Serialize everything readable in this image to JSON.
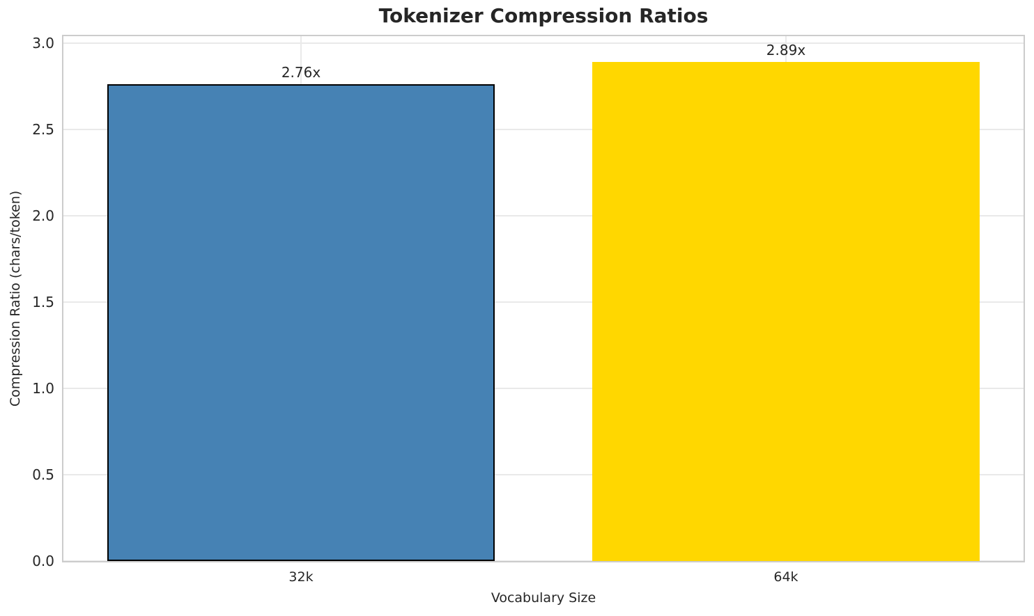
{
  "chart_data": {
    "type": "bar",
    "title": "Tokenizer Compression Ratios",
    "xlabel": "Vocabulary Size",
    "ylabel": "Compression Ratio (chars/token)",
    "categories": [
      "32k",
      "64k"
    ],
    "values": [
      2.76,
      2.89
    ],
    "value_labels": [
      "2.76x",
      "2.89x"
    ],
    "bar_colors": [
      "#4682B4",
      "#FFD700"
    ],
    "bar_edge_colors": [
      "#000000",
      "none"
    ],
    "ytick_labels": [
      "0.0",
      "0.5",
      "1.0",
      "1.5",
      "2.0",
      "2.5",
      "3.0"
    ],
    "yticks": [
      0.0,
      0.5,
      1.0,
      1.5,
      2.0,
      2.5,
      3.0
    ],
    "ylim": [
      0,
      3.04
    ],
    "xlim": [
      -0.49,
      1.49
    ],
    "bar_width_units": 0.8,
    "grid": true,
    "legend_position": "none"
  },
  "colors": {
    "text": "#262626",
    "grid": "#e9e9e9",
    "spine": "#cccccc",
    "background": "#ffffff"
  }
}
